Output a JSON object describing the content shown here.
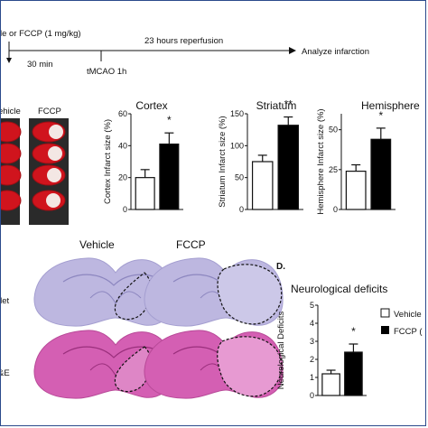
{
  "timeline": {
    "treatment": "le or FCCP (1 mg/kg)",
    "t30": "30 min",
    "tmcao": "tMCAO 1h",
    "reperfusion": "23 hours reperfusion",
    "analyze": "Analyze infarction"
  },
  "ttc": {
    "vehicle_label": "ehicle",
    "fccp_label": "FCCP"
  },
  "histology": {
    "vehicle_label": "Vehicle",
    "fccp_label": "FCCP",
    "row1_label": "llet",
    "row2_label": "&E"
  },
  "panel_d": {
    "letter": "D."
  },
  "legend": {
    "vehicle": "Vehicle",
    "fccp": "FCCP ("
  },
  "colors": {
    "ttc_red": "#d0141d",
    "nissl": "#b9b4de",
    "he": "#d45fb3",
    "bar_fill": "#000000"
  },
  "chart_data": [
    {
      "type": "bar",
      "title": "Cortex",
      "ylabel": "Cortex Infarct size (%)",
      "categories": [
        "Vehicle",
        "FCCP"
      ],
      "values": [
        20,
        41
      ],
      "errors": [
        5,
        7
      ],
      "ylim": [
        0,
        60
      ],
      "yticks": [
        0,
        20,
        40,
        60
      ],
      "significance": "*"
    },
    {
      "type": "bar",
      "title": "Striatum",
      "ylabel": "Striatum Infarct size (%)",
      "categories": [
        "Vehicle",
        "FCCP"
      ],
      "values": [
        75,
        132
      ],
      "errors": [
        10,
        13
      ],
      "ylim": [
        0,
        150
      ],
      "yticks": [
        0,
        50,
        100,
        150
      ],
      "significance": "**"
    },
    {
      "type": "bar",
      "title": "Hemisphere",
      "ylabel": "Hemisphere Infarct size (%)",
      "categories": [
        "Vehicle",
        "FCCP"
      ],
      "values": [
        24,
        44
      ],
      "errors": [
        4,
        7
      ],
      "ylim": [
        0,
        60
      ],
      "yticks": [
        0,
        25,
        50
      ],
      "significance": "*"
    },
    {
      "type": "bar",
      "title": "Neurological deficits",
      "ylabel": "Neurological Deficits",
      "categories": [
        "Vehicle",
        "FCCP"
      ],
      "values": [
        1.2,
        2.4
      ],
      "errors": [
        0.2,
        0.45
      ],
      "ylim": [
        0,
        5
      ],
      "yticks": [
        0,
        1,
        2,
        3,
        4,
        5
      ],
      "significance": "*"
    }
  ]
}
